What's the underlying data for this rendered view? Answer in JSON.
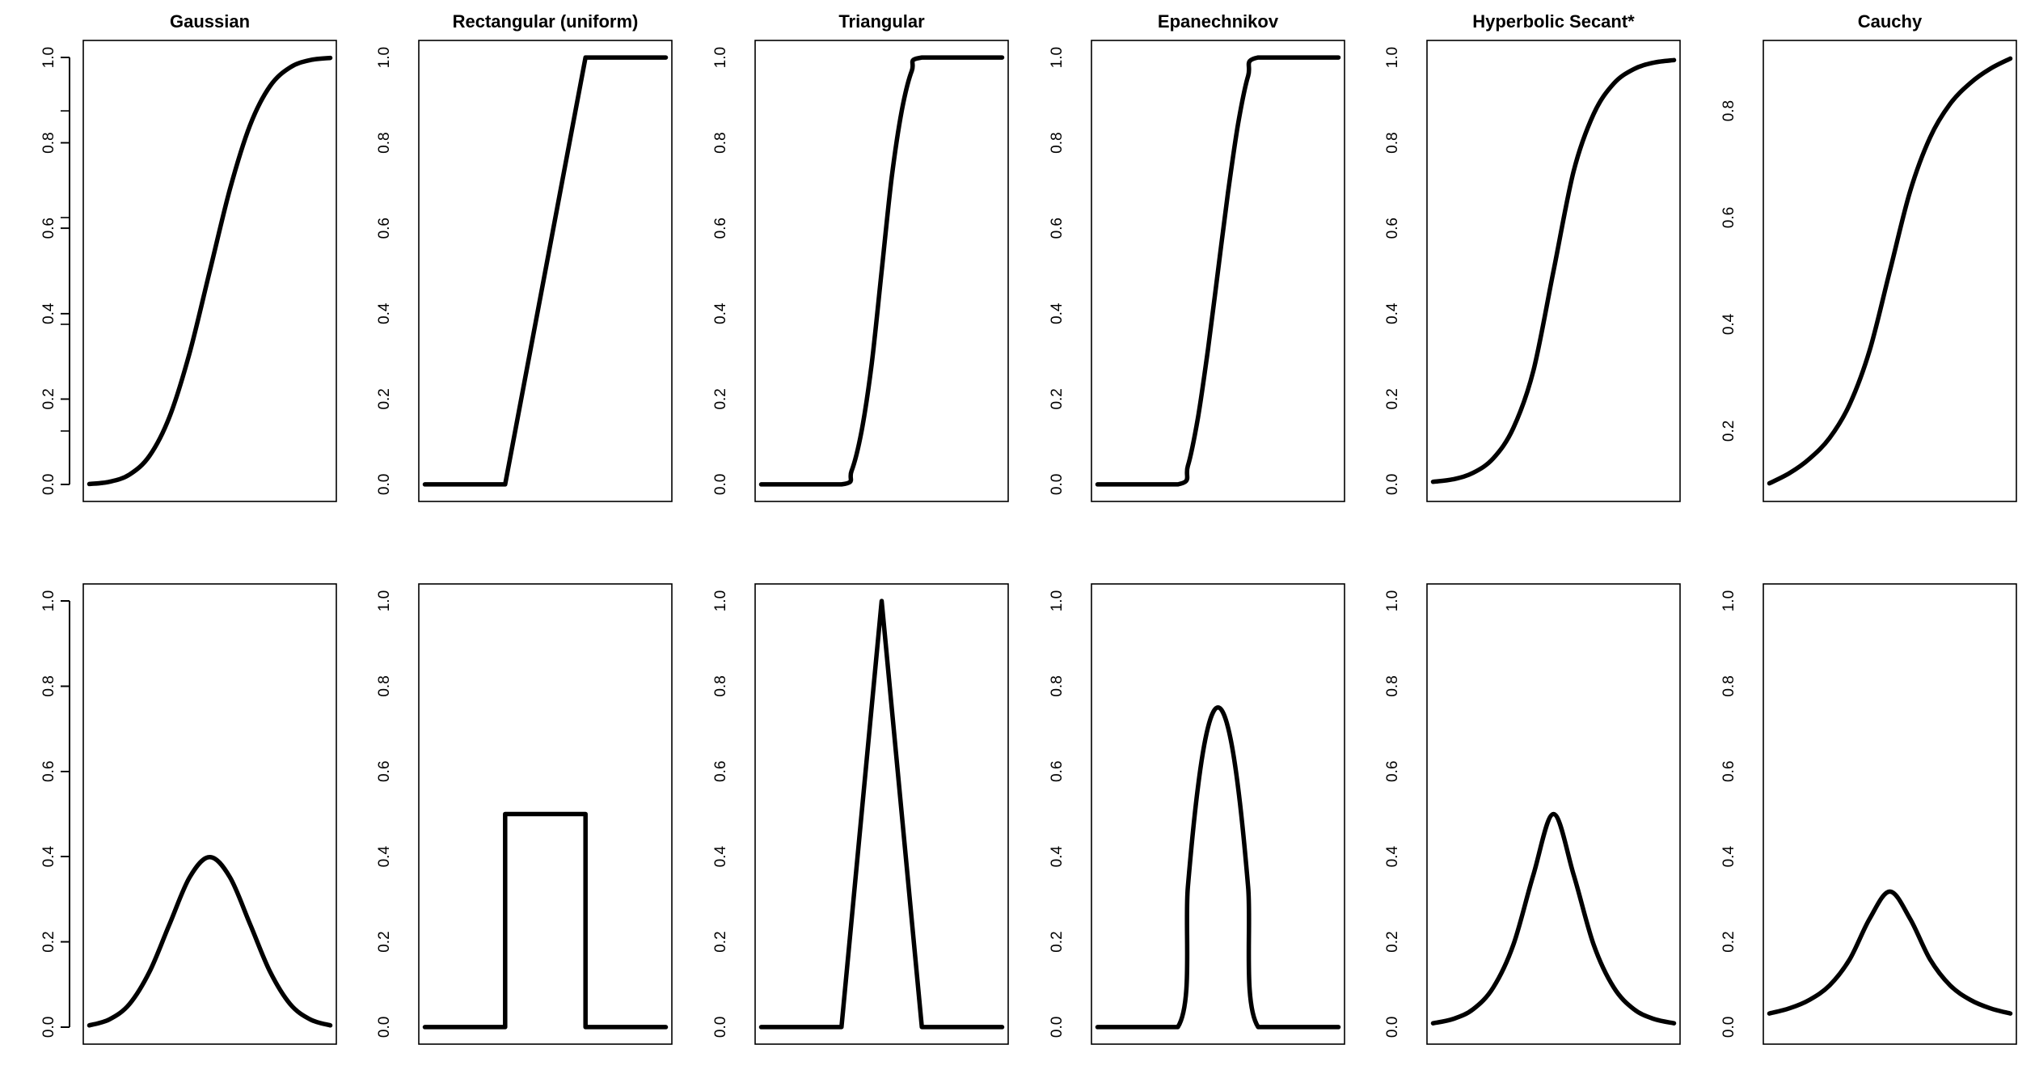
{
  "chart_data": [
    {
      "type": "line",
      "panel": "cdf",
      "title": "Gaussian",
      "xlabel": "",
      "ylabel": "",
      "yticks": [
        0.0,
        0.2,
        0.4,
        0.6,
        0.8,
        1.0
      ],
      "ytick_labels": [
        "0.0",
        "0.2",
        "0.4",
        "0.6",
        "0.8",
        "1.0"
      ],
      "ylim": [
        -0.04,
        1.04
      ],
      "xlim": [
        -3.15,
        3.15
      ],
      "x": [
        -3,
        -2.5,
        -2,
        -1.5,
        -1,
        -0.5,
        0,
        0.5,
        1,
        1.5,
        2,
        2.5,
        3
      ],
      "y": [
        0.001,
        0.006,
        0.023,
        0.067,
        0.159,
        0.309,
        0.5,
        0.691,
        0.841,
        0.933,
        0.977,
        0.994,
        0.999
      ]
    },
    {
      "type": "line",
      "panel": "cdf",
      "title": "Rectangular (uniform)",
      "xlabel": "",
      "ylabel": "",
      "yticks": [
        0.0,
        0.2,
        0.4,
        0.6,
        0.8,
        1.0
      ],
      "ytick_labels": [
        "0.0",
        "0.2",
        "0.4",
        "0.6",
        "0.8",
        "1.0"
      ],
      "ylim": [
        -0.04,
        1.04
      ],
      "xlim": [
        -3.15,
        3.15
      ],
      "x": [
        -3,
        -1,
        1,
        3
      ],
      "y": [
        0,
        0,
        1,
        1
      ]
    },
    {
      "type": "line",
      "panel": "cdf",
      "title": "Triangular",
      "xlabel": "",
      "ylabel": "",
      "yticks": [
        0.0,
        0.2,
        0.4,
        0.6,
        0.8,
        1.0
      ],
      "ytick_labels": [
        "0.0",
        "0.2",
        "0.4",
        "0.6",
        "0.8",
        "1.0"
      ],
      "ylim": [
        -0.04,
        1.04
      ],
      "xlim": [
        -3.15,
        3.15
      ],
      "x": [
        -3,
        -1,
        -0.75,
        -0.5,
        -0.25,
        0,
        0.25,
        0.5,
        0.75,
        1,
        3
      ],
      "y": [
        0,
        0,
        0.031,
        0.125,
        0.281,
        0.5,
        0.719,
        0.875,
        0.969,
        1,
        1
      ]
    },
    {
      "type": "line",
      "panel": "cdf",
      "title": "Epanechnikov",
      "xlabel": "",
      "ylabel": "",
      "yticks": [
        0.0,
        0.2,
        0.4,
        0.6,
        0.8,
        1.0
      ],
      "ytick_labels": [
        "0.0",
        "0.2",
        "0.4",
        "0.6",
        "0.8",
        "1.0"
      ],
      "ylim": [
        -0.04,
        1.04
      ],
      "xlim": [
        -3.15,
        3.15
      ],
      "x": [
        -3,
        -1,
        -0.75,
        -0.5,
        -0.25,
        0,
        0.25,
        0.5,
        0.75,
        1,
        3
      ],
      "y": [
        0,
        0,
        0.043,
        0.156,
        0.316,
        0.5,
        0.684,
        0.844,
        0.957,
        1,
        1
      ]
    },
    {
      "type": "line",
      "panel": "cdf",
      "title": "Hyperbolic Secant*",
      "xlabel": "",
      "ylabel": "",
      "yticks": [
        0.0,
        0.2,
        0.4,
        0.6,
        0.8,
        1.0
      ],
      "ytick_labels": [
        "0.0",
        "0.2",
        "0.4",
        "0.6",
        "0.8",
        "1.0"
      ],
      "ylim": [
        -0.04,
        1.04
      ],
      "xlim": [
        -3.15,
        3.15
      ],
      "x": [
        -3,
        -2.5,
        -2,
        -1.5,
        -1,
        -0.5,
        0,
        0.5,
        1,
        1.5,
        2,
        2.5,
        3
      ],
      "y": [
        0.006,
        0.012,
        0.027,
        0.061,
        0.132,
        0.267,
        0.5,
        0.733,
        0.868,
        0.939,
        0.973,
        0.988,
        0.994
      ]
    },
    {
      "type": "line",
      "panel": "cdf",
      "title": "Cauchy",
      "xlabel": "",
      "ylabel": "",
      "yticks": [
        0.2,
        0.4,
        0.6,
        0.8
      ],
      "ytick_labels": [
        "0.2",
        "0.4",
        "0.6",
        "0.8"
      ],
      "ylim": [
        0.068,
        0.932
      ],
      "xlim": [
        -3.15,
        3.15
      ],
      "x": [
        -3,
        -2.5,
        -2,
        -1.5,
        -1,
        -0.5,
        0,
        0.5,
        1,
        1.5,
        2,
        2.5,
        3
      ],
      "y": [
        0.102,
        0.121,
        0.148,
        0.187,
        0.25,
        0.352,
        0.5,
        0.648,
        0.75,
        0.813,
        0.852,
        0.879,
        0.898
      ]
    },
    {
      "type": "line",
      "panel": "pdf",
      "title": "",
      "xlabel": "",
      "ylabel": "",
      "yticks": [
        0.0,
        0.2,
        0.4,
        0.6,
        0.8,
        1.0
      ],
      "ytick_labels": [
        "0.0",
        "0.2",
        "0.4",
        "0.6",
        "0.8",
        "1.0"
      ],
      "ylim": [
        -0.04,
        1.04
      ],
      "xlim": [
        -3.15,
        3.15
      ],
      "x": [
        -3,
        -2.5,
        -2,
        -1.5,
        -1,
        -0.5,
        0,
        0.5,
        1,
        1.5,
        2,
        2.5,
        3
      ],
      "y": [
        0.004,
        0.018,
        0.054,
        0.13,
        0.242,
        0.352,
        0.399,
        0.352,
        0.242,
        0.13,
        0.054,
        0.018,
        0.004
      ]
    },
    {
      "type": "line",
      "panel": "pdf",
      "title": "",
      "xlabel": "",
      "ylabel": "",
      "yticks": [
        0.0,
        0.2,
        0.4,
        0.6,
        0.8,
        1.0
      ],
      "ytick_labels": [
        "0.0",
        "0.2",
        "0.4",
        "0.6",
        "0.8",
        "1.0"
      ],
      "ylim": [
        -0.04,
        1.04
      ],
      "xlim": [
        -3.15,
        3.15
      ],
      "x": [
        -3,
        -1,
        -1,
        1,
        1,
        3
      ],
      "y": [
        0,
        0,
        0.5,
        0.5,
        0,
        0
      ]
    },
    {
      "type": "line",
      "panel": "pdf",
      "title": "",
      "xlabel": "",
      "ylabel": "",
      "yticks": [
        0.0,
        0.2,
        0.4,
        0.6,
        0.8,
        1.0
      ],
      "ytick_labels": [
        "0.0",
        "0.2",
        "0.4",
        "0.6",
        "0.8",
        "1.0"
      ],
      "ylim": [
        -0.04,
        1.04
      ],
      "xlim": [
        -3.15,
        3.15
      ],
      "x": [
        -3,
        -1,
        0,
        1,
        3
      ],
      "y": [
        0,
        0,
        1,
        0,
        0
      ]
    },
    {
      "type": "line",
      "panel": "pdf",
      "title": "",
      "xlabel": "",
      "ylabel": "",
      "yticks": [
        0.0,
        0.2,
        0.4,
        0.6,
        0.8,
        1.0
      ],
      "ytick_labels": [
        "0.0",
        "0.2",
        "0.4",
        "0.6",
        "0.8",
        "1.0"
      ],
      "ylim": [
        -0.04,
        1.04
      ],
      "xlim": [
        -3.15,
        3.15
      ],
      "x": [
        -3,
        -1,
        -0.75,
        -0.5,
        -0.25,
        0,
        0.25,
        0.5,
        0.75,
        1,
        3
      ],
      "y": [
        0,
        0,
        0.328,
        0.563,
        0.703,
        0.75,
        0.703,
        0.563,
        0.328,
        0,
        0
      ]
    },
    {
      "type": "line",
      "panel": "pdf",
      "title": "",
      "xlabel": "",
      "ylabel": "",
      "yticks": [
        0.0,
        0.2,
        0.4,
        0.6,
        0.8,
        1.0
      ],
      "ytick_labels": [
        "0.0",
        "0.2",
        "0.4",
        "0.6",
        "0.8",
        "1.0"
      ],
      "ylim": [
        -0.04,
        1.04
      ],
      "xlim": [
        -3.15,
        3.15
      ],
      "x": [
        -3,
        -2.5,
        -2,
        -1.5,
        -1,
        -0.5,
        0,
        0.5,
        1,
        1.5,
        2,
        2.5,
        3
      ],
      "y": [
        0.009,
        0.019,
        0.042,
        0.093,
        0.193,
        0.358,
        0.5,
        0.358,
        0.193,
        0.093,
        0.042,
        0.019,
        0.009
      ]
    },
    {
      "type": "line",
      "panel": "pdf",
      "title": "",
      "xlabel": "",
      "ylabel": "",
      "yticks": [
        0.0,
        0.2,
        0.4,
        0.6,
        0.8,
        1.0
      ],
      "ytick_labels": [
        "0.0",
        "0.2",
        "0.4",
        "0.6",
        "0.8",
        "1.0"
      ],
      "ylim": [
        -0.04,
        1.04
      ],
      "xlim": [
        -3.15,
        3.15
      ],
      "x": [
        -3,
        -2.5,
        -2,
        -1.5,
        -1,
        -0.5,
        0,
        0.5,
        1,
        1.5,
        2,
        2.5,
        3
      ],
      "y": [
        0.032,
        0.044,
        0.064,
        0.098,
        0.159,
        0.255,
        0.318,
        0.255,
        0.159,
        0.098,
        0.064,
        0.044,
        0.032
      ]
    }
  ]
}
